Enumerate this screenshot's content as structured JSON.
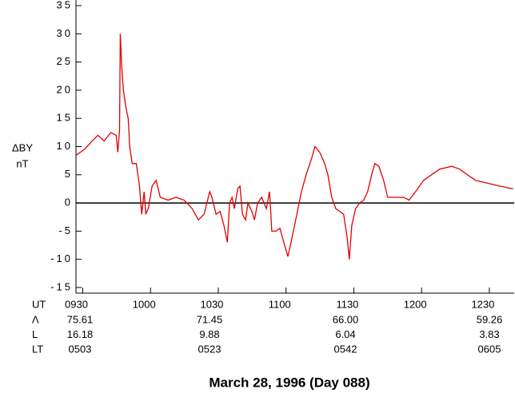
{
  "chart_data": {
    "type": "line",
    "title": "March 28, 1996 (Day 088)",
    "ylabel": "ΔBY",
    "yunit": "nT",
    "xlabel": "UT",
    "xlim": [
      567,
      761
    ],
    "xticks": [
      {
        "value": 570,
        "label": "0930"
      },
      {
        "value": 600,
        "label": "1000"
      },
      {
        "value": 630,
        "label": "1030"
      },
      {
        "value": 660,
        "label": "1100"
      },
      {
        "value": 690,
        "label": "1130"
      },
      {
        "value": 720,
        "label": "1200"
      },
      {
        "value": 750,
        "label": "1230"
      }
    ],
    "ylim": [
      -16,
      36
    ],
    "yticks": [
      -15,
      -10,
      -5,
      0,
      5,
      10,
      15,
      20,
      25,
      30,
      35
    ],
    "series": [
      {
        "color": "#e00000",
        "x": [
          567.2,
          570.7,
          574.2,
          576.7,
          579.5,
          582.4,
          584.8,
          585.5,
          586.3,
          586.6,
          587.3,
          588.0,
          589.1,
          590.1,
          590.8,
          591.9,
          593.7,
          595.1,
          596.1,
          597.2,
          597.9,
          599.0,
          600.7,
          602.5,
          604.3,
          607.8,
          611.3,
          614.9,
          618.4,
          621.2,
          623.7,
          626.2,
          627.2,
          629.0,
          630.8,
          632.5,
          634.0,
          635.0,
          636.1,
          637.1,
          638.6,
          639.6,
          640.7,
          642.1,
          643.1,
          644.9,
          646.0,
          647.4,
          649.2,
          651.3,
          652.7,
          653.7,
          655.5,
          657.3,
          659.0,
          660.8,
          662.2,
          664.3,
          666.8,
          668.9,
          671.4,
          672.8,
          674.9,
          677.1,
          678.5,
          680.2,
          682.0,
          683.8,
          685.5,
          687.0,
          688.0,
          689.1,
          690.8,
          692.6,
          694.4,
          696.1,
          697.9,
          699.3,
          701.1,
          703.2,
          705.0,
          708.5,
          712.0,
          714.5,
          717.3,
          720.9,
          724.4,
          728.0,
          733.3,
          736.8,
          740.3,
          743.9,
          749.2,
          754.5,
          760.5
        ],
        "values": [
          8.5,
          9.5,
          11,
          12,
          11,
          12.5,
          12,
          9,
          13,
          30,
          24,
          20,
          17,
          15,
          10,
          7,
          7,
          3,
          -2,
          2,
          -2,
          -1,
          3,
          4,
          1,
          0.5,
          1,
          0.5,
          -1,
          -3,
          -2,
          2,
          1,
          -2,
          -1.5,
          -4,
          -7,
          0,
          1,
          -1,
          2.5,
          3,
          -2,
          -3,
          0,
          -1.5,
          -3,
          0,
          1,
          -1,
          2,
          -5,
          -5,
          -4.5,
          -7,
          -9.5,
          -7,
          -3,
          2,
          5,
          8,
          10,
          9,
          7,
          5,
          1,
          -1,
          -1.5,
          -2,
          -6,
          -10,
          -4,
          -1,
          0,
          0.5,
          2,
          5,
          7,
          6.5,
          4,
          1,
          1,
          1,
          0.5,
          2,
          4,
          5,
          6,
          6.5,
          6,
          5,
          4,
          3.5,
          3,
          2.5
        ]
      }
    ],
    "table": {
      "rows": [
        {
          "label": "Λ",
          "values": [
            "75.61",
            "71.45",
            "66.00",
            "59.26"
          ]
        },
        {
          "label": "L",
          "values": [
            "16.18",
            "9.88",
            "6.04",
            "3.83"
          ]
        },
        {
          "label": "LT",
          "values": [
            "0503",
            "0523",
            "0542",
            "0605"
          ]
        }
      ]
    }
  }
}
